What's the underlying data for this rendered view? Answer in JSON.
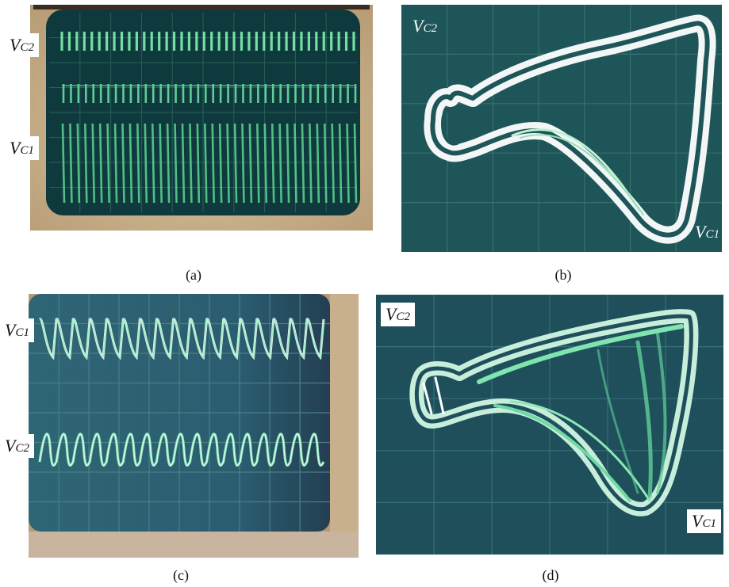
{
  "panels": {
    "a": {
      "caption": "(a)",
      "label_top": {
        "main": "V",
        "sub": "C2"
      },
      "label_bottom": {
        "main": "V",
        "sub": "C1"
      }
    },
    "b": {
      "caption": "(b)",
      "label_top": {
        "main": "V",
        "sub": "C2"
      },
      "label_bottom": {
        "main": "V",
        "sub": "C1"
      }
    },
    "c": {
      "caption": "(c)",
      "label_top": {
        "main": "V",
        "sub": "C1"
      },
      "label_bottom": {
        "main": "V",
        "sub": "C2"
      }
    },
    "d": {
      "caption": "(d)",
      "label_top": {
        "main": "V",
        "sub": "C2"
      },
      "label_bottom": {
        "main": "V",
        "sub": "C1"
      }
    }
  },
  "colors": {
    "screen": "#10373a",
    "trace": "#6fe6a6",
    "trace_bright": "#e8fff2",
    "bezel": "#d8cfae",
    "grid": "#2f5b5a"
  }
}
